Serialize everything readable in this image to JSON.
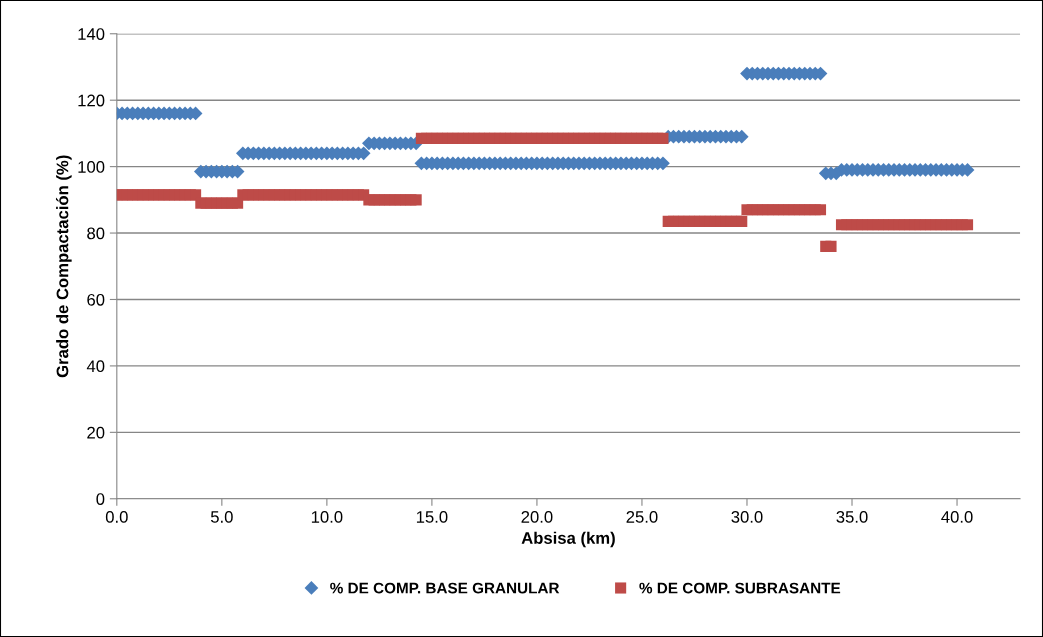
{
  "chart_data": {
    "type": "scatter",
    "xlabel": "Absisa (km)",
    "ylabel": "Grado de Compactación (%)",
    "x": [
      0,
      0.25,
      0.5,
      0.75,
      1,
      1.25,
      1.5,
      1.75,
      2,
      2.25,
      2.5,
      2.75,
      3,
      3.25,
      3.5,
      3.75,
      4,
      4.25,
      4.5,
      4.75,
      5,
      5.25,
      5.5,
      5.75,
      6,
      6.25,
      6.5,
      6.75,
      7,
      7.25,
      7.5,
      7.75,
      8,
      8.25,
      8.5,
      8.75,
      9,
      9.25,
      9.5,
      9.75,
      10,
      10.25,
      10.5,
      10.75,
      11,
      11.25,
      11.5,
      11.75,
      12,
      12.25,
      12.5,
      12.75,
      13,
      13.25,
      13.5,
      13.75,
      14,
      14.25,
      14.5,
      14.75,
      15,
      15.25,
      15.5,
      15.75,
      16,
      16.25,
      16.5,
      16.75,
      17,
      17.25,
      17.5,
      17.75,
      18,
      18.25,
      18.5,
      18.75,
      19,
      19.25,
      19.5,
      19.75,
      20,
      20.25,
      20.5,
      20.75,
      21,
      21.25,
      21.5,
      21.75,
      22,
      22.25,
      22.5,
      22.75,
      23,
      23.25,
      23.5,
      23.75,
      24,
      24.25,
      24.5,
      24.75,
      25,
      25.25,
      25.5,
      25.75,
      26,
      26.25,
      26.5,
      26.75,
      27,
      27.25,
      27.5,
      27.75,
      28,
      28.25,
      28.5,
      28.75,
      29,
      29.25,
      29.5,
      29.75,
      30,
      30.25,
      30.5,
      30.75,
      31,
      31.25,
      31.5,
      31.75,
      32,
      32.25,
      32.5,
      32.75,
      33,
      33.25,
      33.5,
      33.75,
      34,
      34.25,
      34.5,
      34.75,
      35,
      35.25,
      35.5,
      35.75,
      36,
      36.25,
      36.5,
      36.75,
      37,
      37.25,
      37.5,
      37.75,
      38,
      38.25,
      38.5,
      38.75,
      39,
      39.25,
      39.5,
      39.75,
      40,
      40.25,
      40.5
    ],
    "series": [
      {
        "name": "% DE COMP. BASE GRANULAR",
        "color": "#4a7ebb",
        "marker": "diamond",
        "values": [
          116,
          116,
          116,
          116,
          116,
          116,
          116,
          116,
          116,
          116,
          116,
          116,
          116,
          116,
          116,
          116,
          98.5,
          98.5,
          98.5,
          98.5,
          98.5,
          98.5,
          98.5,
          98.5,
          104,
          104,
          104,
          104,
          104,
          104,
          104,
          104,
          104,
          104,
          104,
          104,
          104,
          104,
          104,
          104,
          104,
          104,
          104,
          104,
          104,
          104,
          104,
          104,
          107,
          107,
          107,
          107,
          107,
          107,
          107,
          107,
          107,
          107,
          101,
          101,
          101,
          101,
          101,
          101,
          101,
          101,
          101,
          101,
          101,
          101,
          101,
          101,
          101,
          101,
          101,
          101,
          101,
          101,
          101,
          101,
          101,
          101,
          101,
          101,
          101,
          101,
          101,
          101,
          101,
          101,
          101,
          101,
          101,
          101,
          101,
          101,
          101,
          101,
          101,
          101,
          101,
          101,
          101,
          101,
          101,
          109,
          109,
          109,
          109,
          109,
          109,
          109,
          109,
          109,
          109,
          109,
          109,
          109,
          109,
          109,
          128,
          128,
          128,
          128,
          128,
          128,
          128,
          128,
          128,
          128,
          128,
          128,
          128,
          128,
          128,
          98,
          98,
          98,
          99,
          99,
          99,
          99,
          99,
          99,
          99,
          99,
          99,
          99,
          99,
          99,
          99,
          99,
          99,
          99,
          99,
          99,
          99,
          99,
          99,
          99,
          99,
          99,
          99
        ]
      },
      {
        "name": "% DE COMP. SUBRASANTE",
        "color": "#be4b48",
        "marker": "square",
        "values": [
          91.5,
          91.5,
          91.5,
          91.5,
          91.5,
          91.5,
          91.5,
          91.5,
          91.5,
          91.5,
          91.5,
          91.5,
          91.5,
          91.5,
          91.5,
          91.5,
          89,
          89,
          89,
          89,
          89,
          89,
          89,
          89,
          91.5,
          91.5,
          91.5,
          91.5,
          91.5,
          91.5,
          91.5,
          91.5,
          91.5,
          91.5,
          91.5,
          91.5,
          91.5,
          91.5,
          91.5,
          91.5,
          91.5,
          91.5,
          91.5,
          91.5,
          91.5,
          91.5,
          91.5,
          91.5,
          90,
          90,
          90,
          90,
          90,
          90,
          90,
          90,
          90,
          90,
          108.5,
          108.5,
          108.5,
          108.5,
          108.5,
          108.5,
          108.5,
          108.5,
          108.5,
          108.5,
          108.5,
          108.5,
          108.5,
          108.5,
          108.5,
          108.5,
          108.5,
          108.5,
          108.5,
          108.5,
          108.5,
          108.5,
          108.5,
          108.5,
          108.5,
          108.5,
          108.5,
          108.5,
          108.5,
          108.5,
          108.5,
          108.5,
          108.5,
          108.5,
          108.5,
          108.5,
          108.5,
          108.5,
          108.5,
          108.5,
          108.5,
          108.5,
          108.5,
          108.5,
          108.5,
          108.5,
          108.5,
          83.5,
          83.5,
          83.5,
          83.5,
          83.5,
          83.5,
          83.5,
          83.5,
          83.5,
          83.5,
          83.5,
          83.5,
          83.5,
          83.5,
          83.5,
          87,
          87,
          87,
          87,
          87,
          87,
          87,
          87,
          87,
          87,
          87,
          87,
          87,
          87,
          87,
          76,
          76,
          null,
          82.5,
          82.5,
          82.5,
          82.5,
          82.5,
          82.5,
          82.5,
          82.5,
          82.5,
          82.5,
          82.5,
          82.5,
          82.5,
          82.5,
          82.5,
          82.5,
          82.5,
          82.5,
          82.5,
          82.5,
          82.5,
          82.5,
          82.5,
          82.5,
          82.5
        ]
      }
    ],
    "xlim": [
      0,
      43
    ],
    "xticks": [
      {
        "value": 0,
        "label": "0.0"
      },
      {
        "value": 5,
        "label": "5.0"
      },
      {
        "value": 10,
        "label": "10.0"
      },
      {
        "value": 15,
        "label": "15.0"
      },
      {
        "value": 20,
        "label": "20.0"
      },
      {
        "value": 25,
        "label": "25.0"
      },
      {
        "value": 30,
        "label": "30.0"
      },
      {
        "value": 35,
        "label": "35.0"
      },
      {
        "value": 40,
        "label": "40.0"
      }
    ],
    "ylim": [
      0,
      140
    ],
    "yticks": [
      0,
      20,
      40,
      60,
      80,
      100,
      120,
      140
    ],
    "grid": "y",
    "legend": "bottom"
  }
}
